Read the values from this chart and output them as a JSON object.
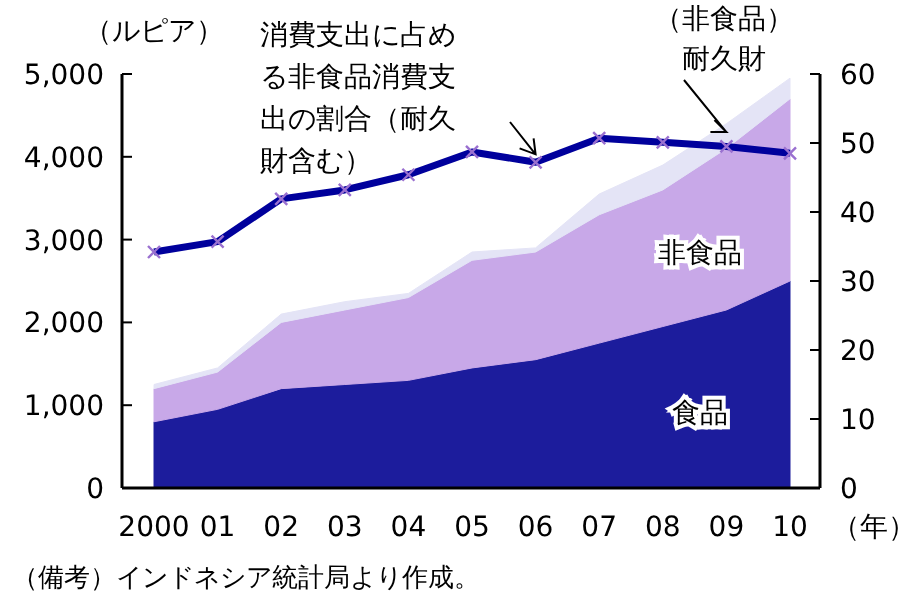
{
  "chart_data": {
    "type": "area",
    "stacked": true,
    "ylabel": "（ルピア）",
    "xlabel": "（年）",
    "categories": [
      "2000",
      "01",
      "02",
      "03",
      "04",
      "05",
      "06",
      "07",
      "08",
      "09",
      "10"
    ],
    "ylim": [
      0,
      5000
    ],
    "yticks": [
      0,
      {
        "value": 1000,
        "label": "1,000"
      },
      {
        "value": 2000,
        "label": "2,000"
      },
      {
        "value": 3000,
        "label": "3,000"
      },
      {
        "value": 4000,
        "label": "4,000"
      },
      {
        "value": 5000,
        "label": "5,000"
      }
    ],
    "y2lim": [
      0,
      60
    ],
    "y2ticks": [
      0,
      10,
      20,
      30,
      40,
      50,
      60
    ],
    "series": [
      {
        "name": "食品",
        "color": "#1c1c9c",
        "values": [
          800,
          950,
          1200,
          1250,
          1300,
          1450,
          1550,
          1750,
          1950,
          2150,
          2500
        ]
      },
      {
        "name": "非食品",
        "color": "#c8a8e8",
        "values": [
          400,
          450,
          800,
          900,
          1000,
          1300,
          1300,
          1550,
          1650,
          1950,
          2200
        ]
      },
      {
        "name": "（非食品）耐久財",
        "color": "#e4e4f6",
        "values": [
          50,
          50,
          100,
          100,
          50,
          100,
          50,
          250,
          300,
          300,
          250
        ]
      },
      {
        "name": "消費支出に占める非食品消費支出の割合（耐久財含む）",
        "type": "line",
        "axis": "y2",
        "marker": "cross",
        "color": "#00009c",
        "values": [
          34.2,
          35.7,
          41.9,
          43.2,
          45.4,
          48.7,
          47.2,
          50.7,
          50.1,
          49.5,
          48.5
        ]
      }
    ],
    "annotations": [
      "（備考）インドネシア統計局より作成。"
    ]
  }
}
